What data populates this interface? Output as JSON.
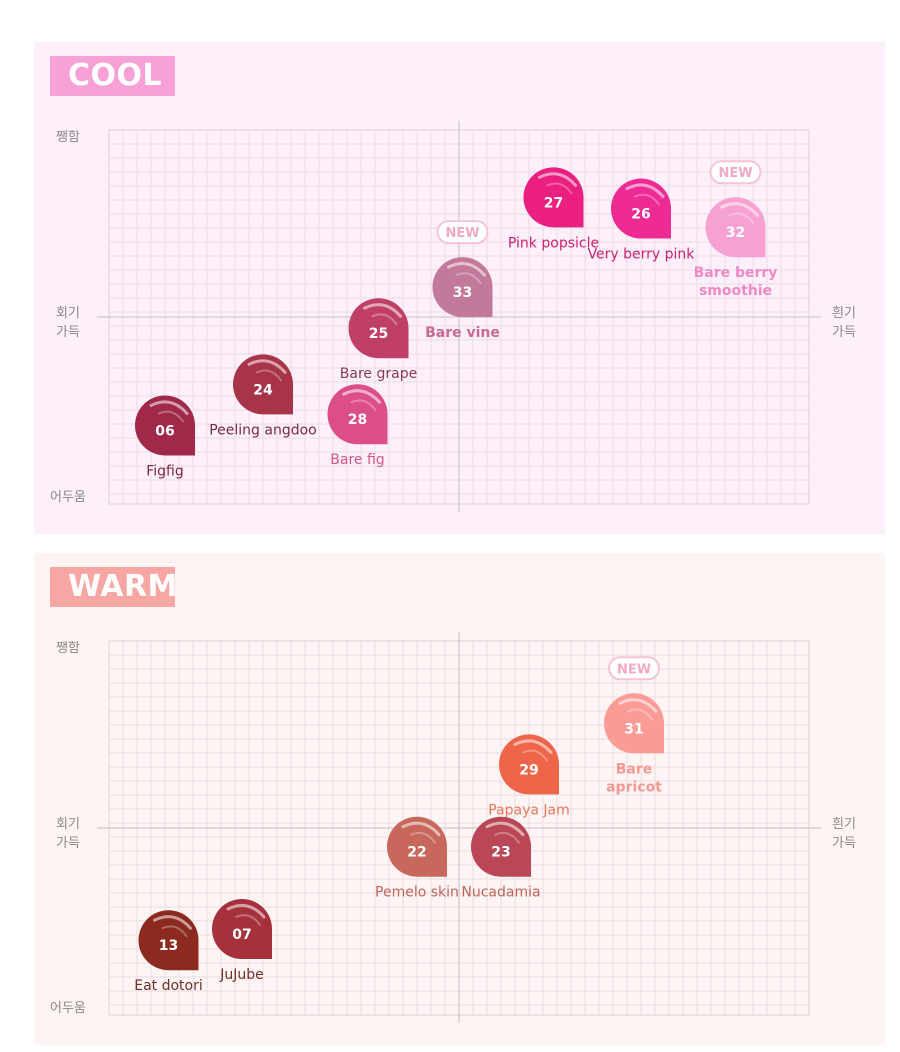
{
  "chart_data": [
    {
      "type": "scatter",
      "title": "COOL",
      "axis_labels": {
        "top": "쨍함",
        "bottom": "어두움",
        "left": [
          "회기",
          "가득"
        ],
        "right": [
          "흰기",
          "가득"
        ]
      },
      "xlim": [
        0,
        100
      ],
      "ylim": [
        0,
        100
      ],
      "grid": true,
      "accent": "#f7a1d6",
      "points": [
        {
          "code": "06",
          "name": [
            "Figfig"
          ],
          "x": 8,
          "y": 21,
          "color": "#a0294a",
          "name_color": "#7a2a3e",
          "bold": false,
          "new": false
        },
        {
          "code": "24",
          "name": [
            "Peeling angdoo"
          ],
          "x": 22,
          "y": 32,
          "color": "#a83449",
          "name_color": "#7a2a3e",
          "bold": false,
          "new": false
        },
        {
          "code": "25",
          "name": [
            "Bare grape"
          ],
          "x": 38.5,
          "y": 47,
          "color": "#bf3f67",
          "name_color": "#8b3a54",
          "bold": false,
          "new": false
        },
        {
          "code": "28",
          "name": [
            "Bare fig"
          ],
          "x": 35.5,
          "y": 24,
          "color": "#dc4e88",
          "name_color": "#d4578a",
          "bold": false,
          "new": false
        },
        {
          "code": "33",
          "name": [
            "Bare vine"
          ],
          "x": 50.5,
          "y": 58,
          "color": "#c3799a",
          "name_color": "#c66a92",
          "bold": true,
          "new": true
        },
        {
          "code": "27",
          "name": [
            "Pink popsicle"
          ],
          "x": 63.5,
          "y": 82,
          "color": "#ea1f80",
          "name_color": "#d0206f",
          "bold": false,
          "new": false
        },
        {
          "code": "26",
          "name": [
            "Very berry pink"
          ],
          "x": 76,
          "y": 79,
          "color": "#ee2a94",
          "name_color": "#d0206f",
          "bold": false,
          "new": false
        },
        {
          "code": "32",
          "name": [
            "Bare berry",
            "smoothie"
          ],
          "x": 89.5,
          "y": 74,
          "color": "#f7a0d2",
          "name_color": "#f08ac5",
          "bold": true,
          "new": true
        }
      ],
      "new_label": "NEW"
    },
    {
      "type": "scatter",
      "title": "WARM",
      "axis_labels": {
        "top": "쨍함",
        "bottom": "어두움",
        "left": [
          "회기",
          "가득"
        ],
        "right": [
          "흰기",
          "가득"
        ]
      },
      "xlim": [
        0,
        100
      ],
      "ylim": [
        0,
        100
      ],
      "grid": true,
      "accent": "#f7a6a3",
      "points": [
        {
          "code": "13",
          "name": [
            "Eat dotori"
          ],
          "x": 8.5,
          "y": 20,
          "color": "#8c2a1f",
          "name_color": "#6e3228",
          "bold": false,
          "new": false
        },
        {
          "code": "07",
          "name": [
            "JuJube"
          ],
          "x": 19,
          "y": 23,
          "color": "#a7303d",
          "name_color": "#6e3228",
          "bold": false,
          "new": false
        },
        {
          "code": "22",
          "name": [
            "Pemelo skin"
          ],
          "x": 44,
          "y": 45,
          "color": "#c8685d",
          "name_color": "#c0665a",
          "bold": false,
          "new": false
        },
        {
          "code": "23",
          "name": [
            "Nucadamia"
          ],
          "x": 56,
          "y": 45,
          "color": "#b94755",
          "name_color": "#c0665a",
          "bold": false,
          "new": false
        },
        {
          "code": "29",
          "name": [
            "Papaya Jam"
          ],
          "x": 60,
          "y": 67,
          "color": "#ef6549",
          "name_color": "#e87a5e",
          "bold": false,
          "new": false
        },
        {
          "code": "31",
          "name": [
            "Bare",
            "apricot"
          ],
          "x": 75,
          "y": 78,
          "color": "#fb9b96",
          "name_color": "#f49893",
          "bold": true,
          "new": true
        }
      ],
      "new_label": "NEW"
    }
  ]
}
